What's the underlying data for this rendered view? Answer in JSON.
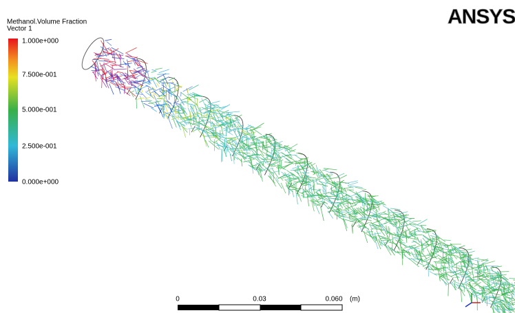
{
  "legend": {
    "title": "Methanol.Volume Fraction",
    "subtitle": "Vector 1",
    "labels": [
      "1.000e+000",
      "7.500e-001",
      "5.000e-001",
      "2.500e-001",
      "0.000e+000"
    ]
  },
  "logo": "ANSYS",
  "scale_bar": {
    "labels": [
      "0",
      "0.03",
      "0.060"
    ],
    "unit": "(m)"
  }
}
